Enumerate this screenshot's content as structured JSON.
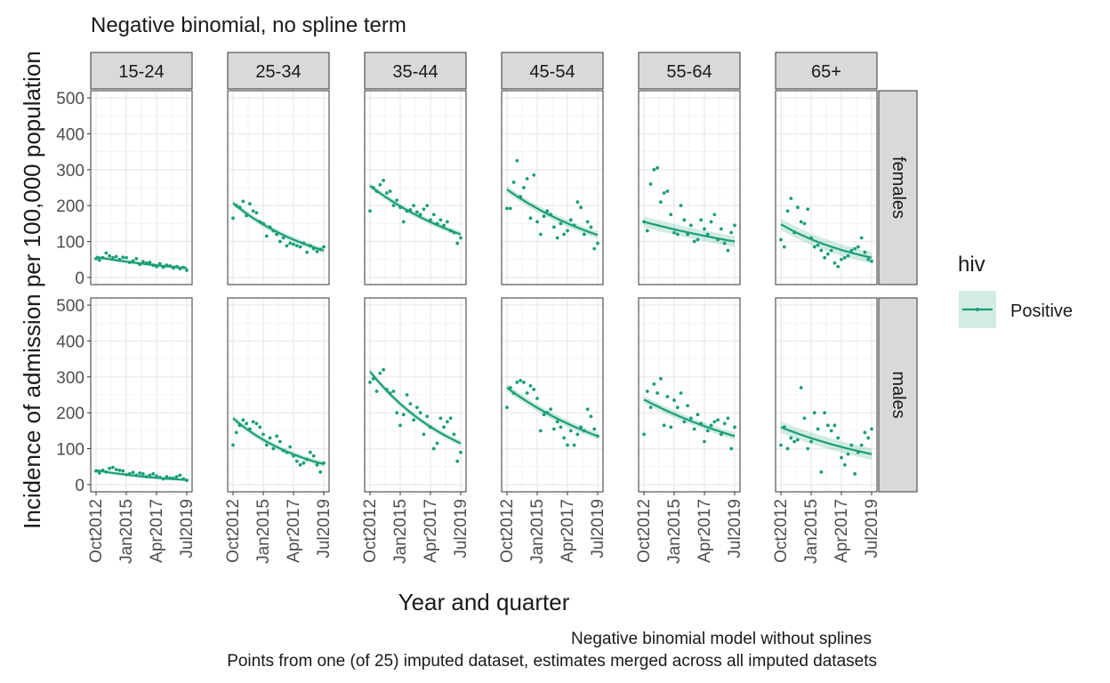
{
  "chart_data": {
    "type": "line",
    "title": "Negative binomial, no spline term",
    "xlabel": "Year and quarter",
    "ylabel": "Incidence of admission per 100,000 population",
    "caption_lines": [
      "Negative binomial model without splines",
      "Points from one (of 25) imputed dataset, estimates merged across all imputed datasets"
    ],
    "legend": {
      "title": "hiv",
      "entries": [
        "Positive"
      ],
      "placement": "right"
    },
    "colors": {
      "series": "#1b9e77",
      "strip_fill": "#d9d9d9",
      "grid": "#ebebeb",
      "panel_border": "#333333"
    },
    "grid": true,
    "x_ticks": [
      "Oct2012",
      "Jan2015",
      "Apr2017",
      "Jul2019"
    ],
    "x_tick_values": [
      0,
      9,
      18,
      27
    ],
    "x_range": [
      0,
      27
    ],
    "y_ticks": [
      0,
      100,
      200,
      300,
      400,
      500
    ],
    "ylim": [
      -20,
      520
    ],
    "columns": [
      "15-24",
      "25-34",
      "35-44",
      "45-54",
      "55-64",
      "65+"
    ],
    "rows": [
      "females",
      "males"
    ],
    "panels": [
      {
        "row": "females",
        "col": "15-24",
        "start": 57,
        "end": 26,
        "band": 5,
        "points": [
          52,
          48,
          55,
          68,
          60,
          55,
          58,
          50,
          56,
          55,
          42,
          46,
          52,
          36,
          44,
          40,
          42,
          34,
          30,
          38,
          28,
          34,
          32,
          26,
          30,
          24,
          28,
          20
        ]
      },
      {
        "row": "females",
        "col": "25-34",
        "start": 207,
        "end": 75,
        "band": 8,
        "points": [
          165,
          200,
          195,
          212,
          172,
          205,
          185,
          180,
          155,
          150,
          115,
          140,
          130,
          120,
          100,
          110,
          88,
          95,
          92,
          88,
          85,
          95,
          70,
          88,
          80,
          72,
          78,
          85
        ]
      },
      {
        "row": "females",
        "col": "35-44",
        "start": 255,
        "end": 120,
        "band": 8,
        "points": [
          185,
          250,
          240,
          258,
          270,
          235,
          240,
          200,
          215,
          195,
          155,
          185,
          188,
          200,
          182,
          175,
          190,
          200,
          160,
          175,
          150,
          160,
          145,
          155,
          130,
          125,
          95,
          110
        ]
      },
      {
        "row": "females",
        "col": "45-54",
        "start": 245,
        "end": 118,
        "band": 10,
        "points": [
          192,
          192,
          265,
          325,
          225,
          250,
          275,
          165,
          285,
          155,
          120,
          170,
          185,
          175,
          140,
          110,
          150,
          120,
          130,
          160,
          145,
          210,
          195,
          120,
          155,
          140,
          80,
          95
        ]
      },
      {
        "row": "females",
        "col": "55-64",
        "start": 155,
        "end": 100,
        "band": 15,
        "points": [
          155,
          130,
          260,
          300,
          305,
          210,
          235,
          240,
          175,
          125,
          120,
          200,
          160,
          120,
          145,
          100,
          105,
          160,
          135,
          120,
          155,
          175,
          105,
          135,
          95,
          75,
          125,
          145
        ]
      },
      {
        "row": "females",
        "col": "65+",
        "start": 148,
        "end": 55,
        "band": 16,
        "points": [
          105,
          85,
          185,
          220,
          125,
          195,
          155,
          150,
          190,
          110,
          85,
          90,
          75,
          55,
          65,
          75,
          40,
          30,
          50,
          55,
          60,
          75,
          80,
          85,
          110,
          70,
          50,
          45
        ]
      },
      {
        "row": "males",
        "col": "15-24",
        "start": 40,
        "end": 13,
        "band": 4,
        "points": [
          38,
          32,
          40,
          35,
          45,
          48,
          42,
          40,
          38,
          28,
          30,
          34,
          26,
          32,
          30,
          22,
          26,
          30,
          24,
          20,
          16,
          22,
          18,
          18,
          22,
          26,
          16,
          12
        ]
      },
      {
        "row": "males",
        "col": "25-34",
        "start": 185,
        "end": 57,
        "band": 8,
        "points": [
          110,
          145,
          165,
          180,
          170,
          155,
          175,
          170,
          160,
          140,
          110,
          130,
          100,
          135,
          120,
          95,
          90,
          105,
          80,
          65,
          55,
          60,
          70,
          90,
          80,
          55,
          35,
          60
        ]
      },
      {
        "row": "males",
        "col": "35-44",
        "start": 315,
        "end": 115,
        "band": 8,
        "points": [
          285,
          295,
          260,
          310,
          320,
          265,
          255,
          260,
          200,
          165,
          195,
          250,
          225,
          180,
          215,
          200,
          140,
          190,
          160,
          100,
          115,
          185,
          160,
          175,
          185,
          140,
          65,
          90
        ]
      },
      {
        "row": "males",
        "col": "45-54",
        "start": 270,
        "end": 135,
        "band": 10,
        "points": [
          215,
          270,
          255,
          285,
          290,
          285,
          255,
          275,
          265,
          240,
          150,
          195,
          200,
          210,
          155,
          175,
          160,
          130,
          110,
          150,
          110,
          140,
          160,
          150,
          210,
          190,
          155,
          135
        ]
      },
      {
        "row": "males",
        "col": "55-64",
        "start": 237,
        "end": 135,
        "band": 10,
        "points": [
          140,
          260,
          215,
          280,
          255,
          295,
          165,
          245,
          160,
          235,
          215,
          255,
          175,
          220,
          185,
          155,
          195,
          170,
          120,
          150,
          165,
          175,
          180,
          140,
          170,
          185,
          100,
          160
        ]
      },
      {
        "row": "males",
        "col": "65+",
        "start": 160,
        "end": 85,
        "band": 16,
        "points": [
          110,
          160,
          100,
          130,
          120,
          125,
          270,
          185,
          100,
          120,
          200,
          155,
          35,
          200,
          165,
          150,
          165,
          130,
          75,
          55,
          85,
          110,
          30,
          90,
          110,
          145,
          130,
          155
        ]
      }
    ]
  }
}
